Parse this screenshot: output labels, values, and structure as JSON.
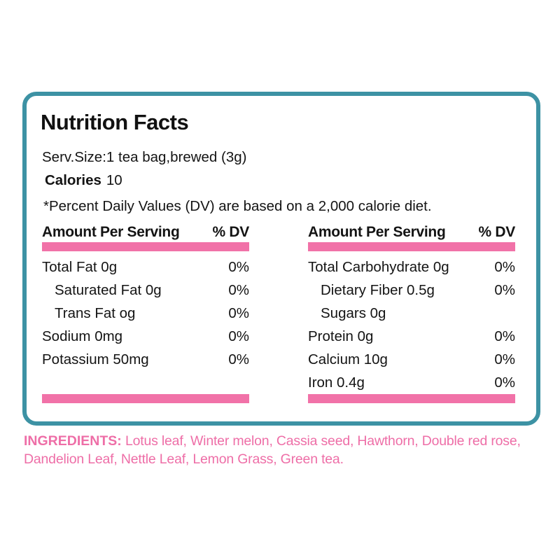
{
  "panel": {
    "title": "Nutrition Facts",
    "serving": "Serv.Size:1 tea bag,brewed (3g)",
    "calories_label": "Calories",
    "calories_value": "10",
    "dv_note": "*Percent Daily Values (DV) are based on a 2,000 calorie diet.",
    "columns": [
      {
        "header_left": "Amount Per Serving",
        "header_right": "% DV",
        "rows": [
          {
            "label": "Total Fat 0g",
            "dv": "0%",
            "indent": 0
          },
          {
            "label": "Saturated Fat 0g",
            "dv": "0%",
            "indent": 1
          },
          {
            "label": "Trans Fat og",
            "dv": "0%",
            "indent": 1
          },
          {
            "label": "Sodium 0mg",
            "dv": "0%",
            "indent": 0
          },
          {
            "label": "Potassium 50mg",
            "dv": "0%",
            "indent": 0
          }
        ]
      },
      {
        "header_left": "Amount Per Serving",
        "header_right": "% DV",
        "rows": [
          {
            "label": "Total Carbohydrate 0g",
            "dv": "0%",
            "indent": 0
          },
          {
            "label": "Dietary Fiber 0.5g",
            "dv": "0%",
            "indent": 1
          },
          {
            "label": "Sugars 0g",
            "dv": "",
            "indent": 1
          },
          {
            "label": "Protein 0g",
            "dv": "0%",
            "indent": 0
          },
          {
            "label": "Calcium 10g",
            "dv": "0%",
            "indent": 0
          },
          {
            "label": "Iron 0.4g",
            "dv": "0%",
            "indent": 0
          }
        ]
      }
    ]
  },
  "ingredients": {
    "label": "INGREDIENTS:",
    "text": " Lotus leaf, Winter melon, Cassia seed, Hawthorn, Double red rose, Dandelion Leaf, Nettle Leaf, Lemon Grass, Green tea."
  },
  "colors": {
    "border_teal": "#3d92a4",
    "bar_pink": "#f172a8",
    "ingredients_pink": "#ee6ea7",
    "text": "#141414"
  }
}
